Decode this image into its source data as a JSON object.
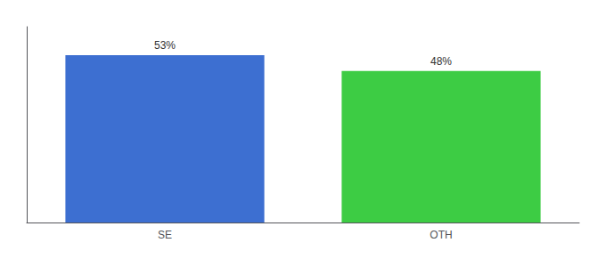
{
  "chart_data": {
    "type": "bar",
    "categories": [
      "SE",
      "OTH"
    ],
    "values": [
      53,
      48
    ],
    "value_labels": [
      "53%",
      "48%"
    ],
    "colors": [
      "#3d6fd1",
      "#3dcc44"
    ],
    "ylim": [
      0,
      62
    ],
    "grid": false,
    "data_labels": true,
    "tick_labels": "x"
  }
}
